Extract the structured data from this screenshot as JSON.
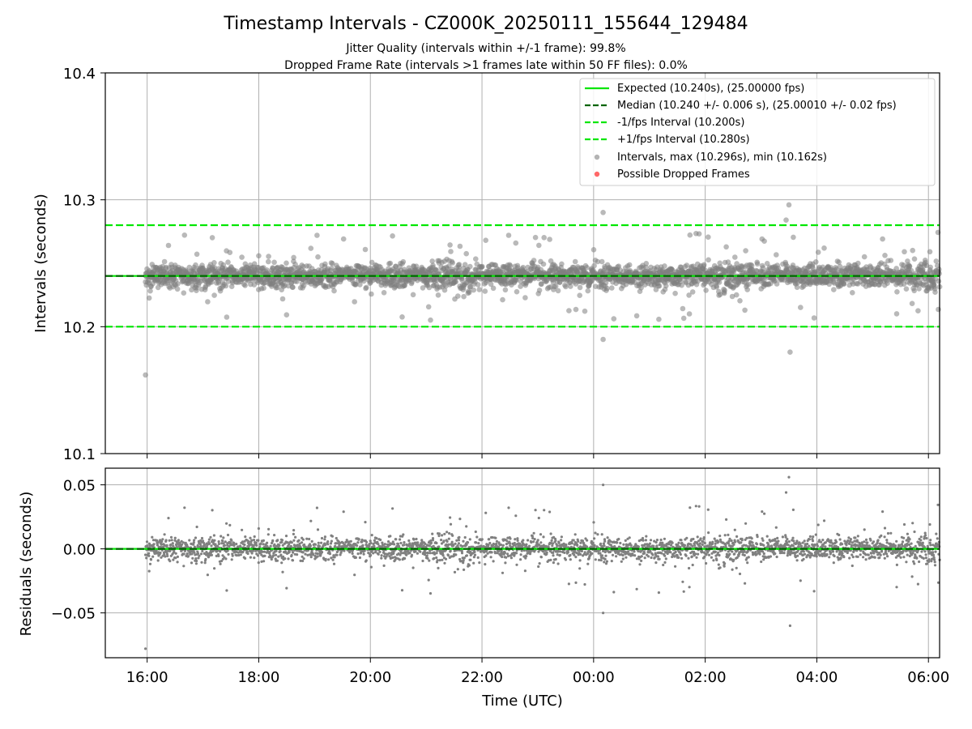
{
  "chart_data": [
    {
      "type": "scatter",
      "title": "Timestamp Intervals - CZ000K_20250111_155644_129484",
      "subtitle_lines": [
        "Jitter Quality (intervals within +/-1 frame): 99.8%",
        "Dropped Frame Rate (intervals >1 frames late within 50 FF files): 0.0%"
      ],
      "ylabel": "Intervals (seconds)",
      "ylim": [
        10.1,
        10.4
      ],
      "yticks": [
        10.1,
        10.2,
        10.3,
        10.4
      ],
      "ytick_labels": [
        "10.1",
        "10.2",
        "10.3",
        "10.4"
      ],
      "xlim_hours": [
        15.25,
        30.2
      ],
      "xticks_hours": [
        16,
        18,
        20,
        22,
        24,
        26,
        28,
        30
      ],
      "grid": true,
      "legend_position": "top-right",
      "reference_lines": [
        {
          "name": "Expected (10.240s), (25.00000 fps)",
          "value": 10.24,
          "style": "solid",
          "color": "#00e600"
        },
        {
          "name": "Median (10.240 +/- 0.006 s), (25.00010 +/- 0.02 fps)",
          "value": 10.24,
          "style": "dashed",
          "color": "#006400"
        },
        {
          "name": "-1/fps Interval (10.200s)",
          "value": 10.2,
          "style": "dashed",
          "color": "#00e600"
        },
        {
          "name": "+1/fps Interval (10.280s)",
          "value": 10.28,
          "style": "dashed",
          "color": "#00e600"
        }
      ],
      "series": [
        {
          "name": "Intervals, max (10.296s), min (10.162s)",
          "color": "#808080",
          "center": 10.24,
          "max": 10.296,
          "min": 10.162
        },
        {
          "name": "Possible Dropped Frames",
          "color": "#ff4d4d",
          "points": []
        }
      ],
      "notable_points": [
        {
          "x_hours": 15.97,
          "y": 10.162
        },
        {
          "x_hours": 24.17,
          "y": 10.29
        },
        {
          "x_hours": 24.17,
          "y": 10.19
        },
        {
          "x_hours": 27.5,
          "y": 10.296
        },
        {
          "x_hours": 27.45,
          "y": 10.284
        },
        {
          "x_hours": 27.52,
          "y": 10.18
        }
      ]
    },
    {
      "type": "scatter",
      "xlabel": "Time (UTC)",
      "ylabel": "Residuals (seconds)",
      "ylim": [
        -0.085,
        0.063
      ],
      "yticks": [
        -0.05,
        0.0,
        0.05
      ],
      "ytick_labels": [
        "−0.05",
        "0.00",
        "0.05"
      ],
      "xlim_hours": [
        15.25,
        30.2
      ],
      "xticks_hours": [
        16,
        18,
        20,
        22,
        24,
        26,
        28,
        30
      ],
      "xtick_labels": [
        "16:00",
        "18:00",
        "20:00",
        "22:00",
        "00:00",
        "02:00",
        "04:00",
        "06:00"
      ],
      "grid": true,
      "reference_lines": [
        {
          "value": 0.0,
          "style": "solid",
          "color": "#00e600"
        },
        {
          "value": 0.0,
          "style": "dashed",
          "color": "#006400"
        }
      ],
      "series": [
        {
          "color": "#808080",
          "center": 0.0,
          "max": 0.056,
          "min": -0.078
        }
      ],
      "notable_points": [
        {
          "x_hours": 15.97,
          "y": -0.078
        },
        {
          "x_hours": 24.17,
          "y": 0.05
        },
        {
          "x_hours": 24.17,
          "y": -0.05
        },
        {
          "x_hours": 27.5,
          "y": 0.056
        },
        {
          "x_hours": 27.45,
          "y": 0.044
        },
        {
          "x_hours": 27.52,
          "y": -0.06
        }
      ]
    }
  ]
}
